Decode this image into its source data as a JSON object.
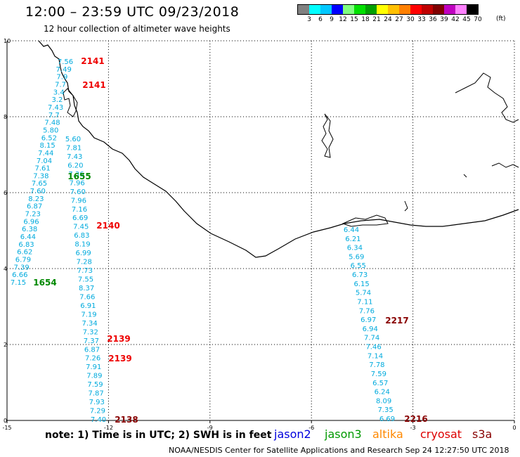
{
  "header": {
    "title": "12:00 – 23:59 UTC 09/23/2018",
    "subtitle": "12 hour collection of altimeter wave heights"
  },
  "scale": {
    "colors": [
      "#808080",
      "#00ffff",
      "#00c8ff",
      "#0000ff",
      "#80ff80",
      "#00e000",
      "#00a000",
      "#ffff00",
      "#ffc000",
      "#ff8000",
      "#ff0000",
      "#c00000",
      "#800000",
      "#c000c0",
      "#ff80ff",
      "#000000"
    ],
    "labels": [
      "3",
      "6",
      "9",
      "12",
      "15",
      "18",
      "21",
      "24",
      "27",
      "30",
      "33",
      "36",
      "39",
      "42",
      "45",
      "70"
    ],
    "unit": "(ft)"
  },
  "axes": {
    "x_ticks": [
      "-15",
      "-12",
      "-9",
      "-6",
      "-3",
      "0"
    ],
    "y_ticks": [
      "0",
      "2",
      "4",
      "6",
      "8",
      "10"
    ],
    "xlim": [
      -15,
      0
    ],
    "ylim": [
      0,
      10
    ]
  },
  "colors": {
    "swh": "#00aadd",
    "time_red": "#ee0000",
    "time_green": "#008800",
    "time_darkred": "#880000",
    "grid": "#000000"
  },
  "track_values": {
    "t1": [
      "7.56",
      "7.49",
      "7.9",
      "7.7",
      "3.4",
      "3.2",
      "7.43",
      "7.7",
      "7.48",
      "5.80",
      "6.52",
      "8.15",
      "7.44",
      "7.04",
      "7.61",
      "7.38",
      "7.65",
      "7.60",
      "8.23",
      "6.87",
      "7.23",
      "6.96",
      "6.38",
      "6.44",
      "6.83",
      "6.62",
      "6.79",
      "7.39",
      "6.66",
      "7.15"
    ],
    "t2": [
      "5.60",
      "7.81",
      "7.43",
      "6.20",
      "7.36",
      "7.96",
      "7.60",
      "7.96",
      "7.16",
      "6.69",
      "7.45",
      "6.83",
      "8.19",
      "6.99",
      "7.28",
      "7.73",
      "7.55",
      "8.37",
      "7.66",
      "6.91",
      "7.19",
      "7.34",
      "7.32",
      "7.37",
      "6.87",
      "7.26",
      "7.91",
      "7.89",
      "7.59",
      "7.87",
      "7.93",
      "7.29",
      "7.40"
    ],
    "t3": [
      "6.44",
      "6.21",
      "6.34",
      "5.69",
      "6.55",
      "6.73",
      "6.15",
      "5.74",
      "7.11",
      "7.76",
      "6.97",
      "6.94",
      "7.74",
      "7.46",
      "7.14",
      "7.78",
      "7.59",
      "6.57",
      "6.24",
      "8.09",
      "7.35",
      "6.69"
    ]
  },
  "pass_times": {
    "a": "2141",
    "b": "2141",
    "c": "1655",
    "d": "2140",
    "e": "1654",
    "f": "2139",
    "g": "2139",
    "h": "2138",
    "i": "2217",
    "j": "2216"
  },
  "footer": {
    "note": "note: 1) Time is in UTC; 2) SWH is in feet",
    "legend": [
      {
        "label": "jason2",
        "color": "#0000dd"
      },
      {
        "label": "jason3",
        "color": "#009900"
      },
      {
        "label": "altika",
        "color": "#ff8800"
      },
      {
        "label": "cryosat",
        "color": "#dd0000"
      },
      {
        "label": "s3a",
        "color": "#880000"
      }
    ],
    "credit": "NOAA/NESDIS Center for Satellite Applications and Research     Sep 24 12:27:50 UTC 2018"
  }
}
